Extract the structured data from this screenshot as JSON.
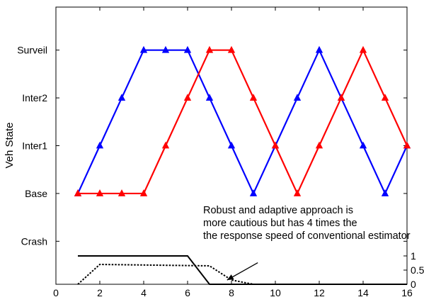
{
  "chart_data": {
    "type": "line",
    "ylabel": "Veh State",
    "x_ticks": [
      0,
      2,
      4,
      6,
      8,
      10,
      12,
      14,
      16
    ],
    "xlim": [
      0,
      16
    ],
    "state_labels": [
      "Crash",
      "Base",
      "Inter1",
      "Inter2",
      "Surveil"
    ],
    "state_ylim": [
      -0.9,
      4.9
    ],
    "series": [
      {
        "color": "#0000ff",
        "marker": "triangle",
        "x": [
          1,
          2,
          3,
          4,
          5,
          6,
          7,
          8,
          9,
          10,
          11,
          12,
          13,
          14,
          15,
          16
        ],
        "y": [
          1,
          2,
          3,
          4,
          4,
          4,
          3,
          2,
          1,
          2,
          3,
          4,
          3,
          2,
          1,
          2
        ]
      },
      {
        "color": "#ff0000",
        "marker": "triangle",
        "x": [
          1,
          2,
          3,
          4,
          5,
          6,
          7,
          8,
          9,
          10,
          11,
          12,
          13,
          14,
          15,
          16
        ],
        "y": [
          1,
          1,
          1,
          1,
          2,
          3,
          4,
          4,
          3,
          2,
          1,
          2,
          3,
          4,
          3,
          2
        ]
      }
    ],
    "lower_axis": {
      "ticks": [
        0,
        0.5,
        1
      ],
      "tick_labels": [
        "0",
        "0.5",
        "1"
      ],
      "ylim": [
        0,
        1
      ],
      "series": [
        {
          "style": "solid",
          "color": "#000000",
          "x": [
            1,
            2,
            3,
            4,
            5,
            6,
            7,
            8,
            9,
            10,
            11,
            12,
            13,
            14,
            15,
            16
          ],
          "y": [
            1,
            1,
            1,
            1,
            1,
            1,
            0,
            0,
            0,
            0,
            0,
            0,
            0,
            0,
            0,
            0
          ]
        },
        {
          "style": "dotted",
          "color": "#000000",
          "x": [
            1,
            2,
            3,
            4,
            5,
            6,
            7,
            8,
            9,
            10,
            11,
            12,
            13,
            14,
            15,
            16
          ],
          "y": [
            0,
            0.7,
            0.69,
            0.68,
            0.67,
            0.66,
            0.65,
            0.15,
            0,
            0,
            0,
            0,
            0,
            0,
            0,
            0
          ]
        }
      ]
    },
    "annotation": {
      "lines": [
        "Robust and adaptive approach is",
        "more cautious but has 4 times the",
        "the response speed of conventional estimator"
      ],
      "arrow_from": [
        9.2,
        0.76
      ],
      "arrow_to": [
        7.8,
        0.15
      ]
    }
  }
}
